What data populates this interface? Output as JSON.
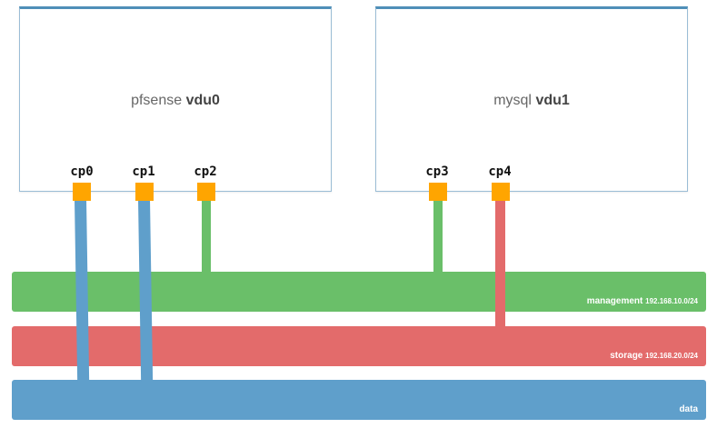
{
  "vdus": [
    {
      "image": "pfsense",
      "name": "vdu0"
    },
    {
      "image": "mysql",
      "name": "vdu1"
    }
  ],
  "connection_points": [
    "cp0",
    "cp1",
    "cp2",
    "cp3",
    "cp4"
  ],
  "networks": [
    {
      "name": "management",
      "subnet": "192.168.10.0/24",
      "color": "#6abf69"
    },
    {
      "name": "storage",
      "subnet": "192.168.20.0/24",
      "color": "#e36b6b"
    },
    {
      "name": "data",
      "subnet": "",
      "color": "#5f9fcb"
    }
  ],
  "colors": {
    "connection_point": "#ffa500",
    "vdu_border": "#4f8fb8"
  }
}
